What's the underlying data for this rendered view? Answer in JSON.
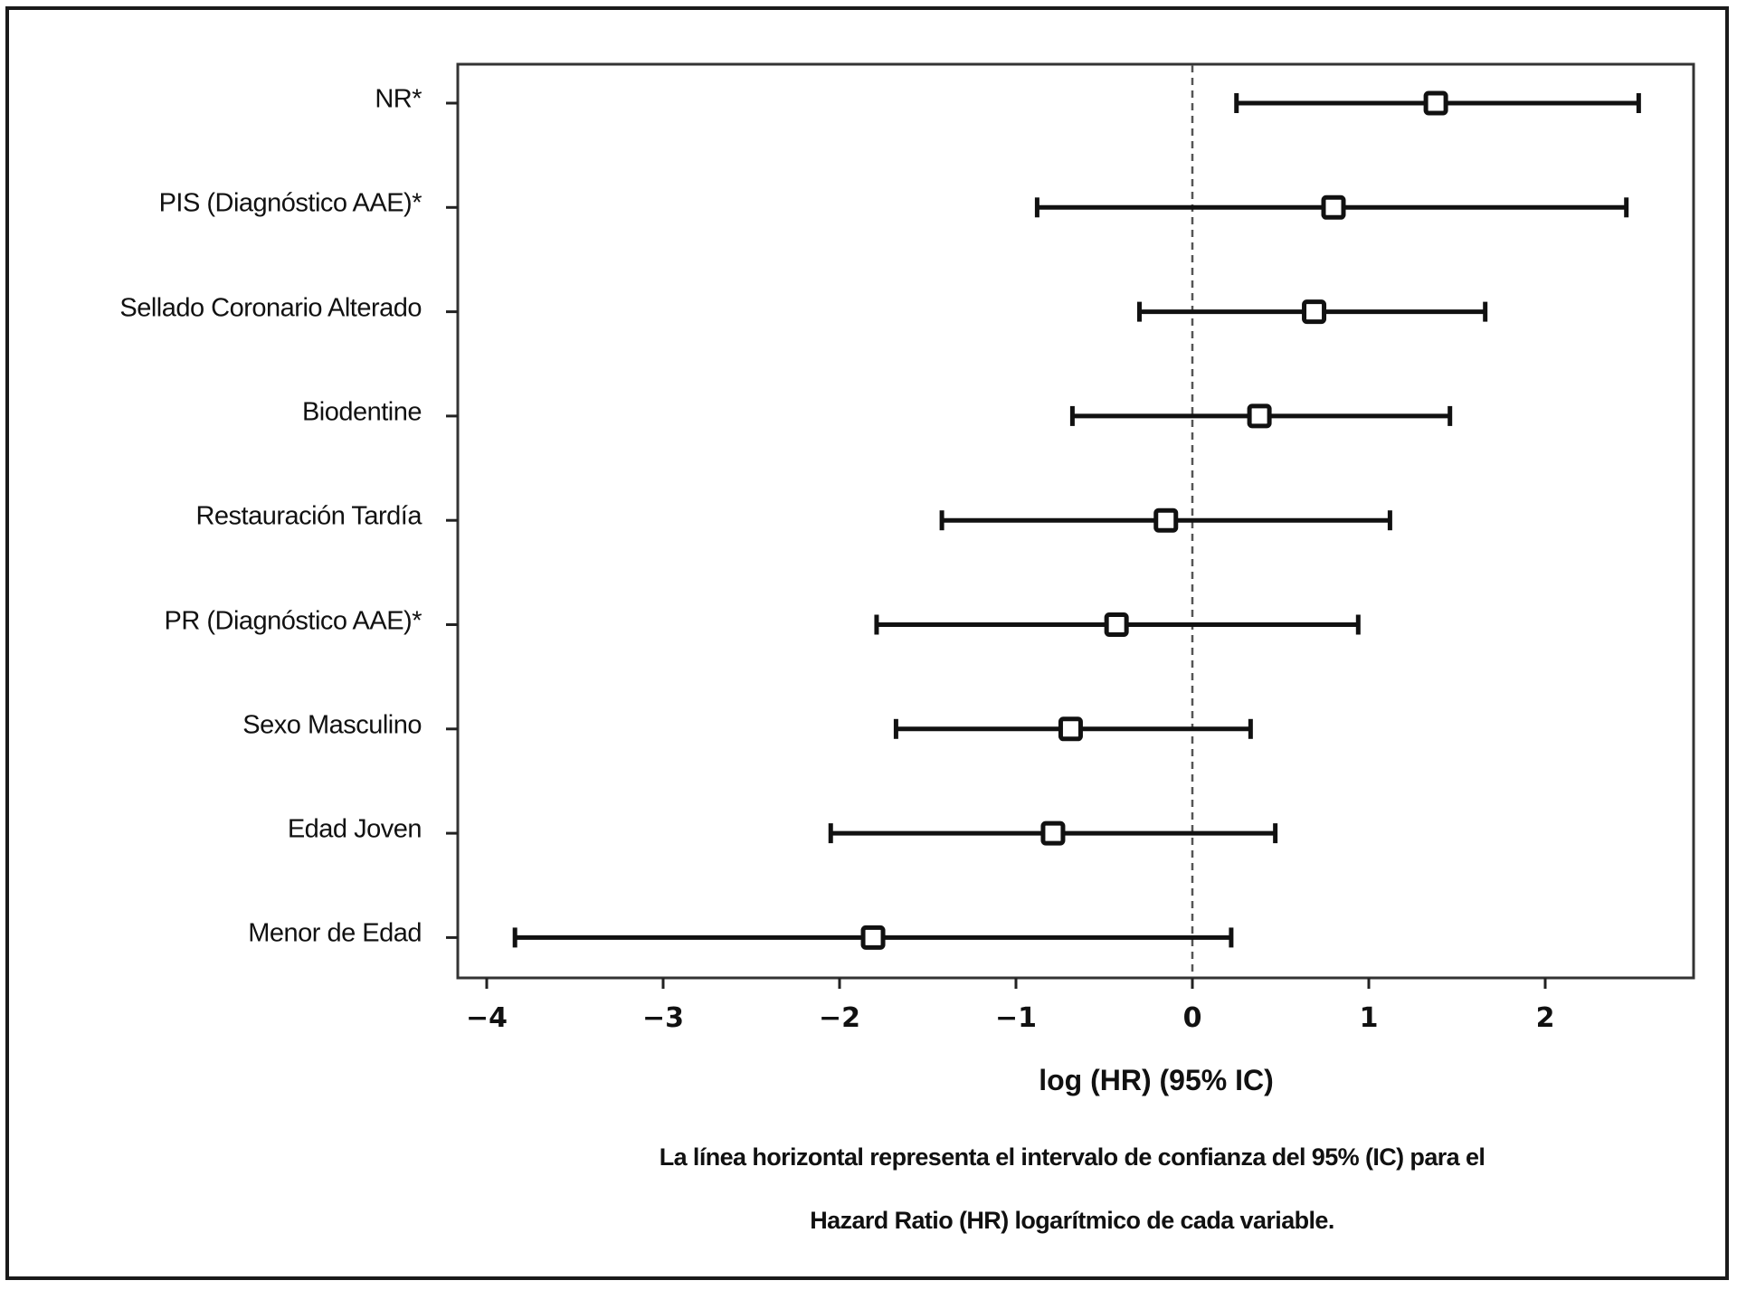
{
  "chart_data": {
    "type": "forest",
    "title": "",
    "xlabel": "log (HR) (95% IC)",
    "ylabel": "",
    "xlim": [
      -4.2,
      2.85
    ],
    "xticks": [
      -4,
      -3,
      -2,
      -1,
      0,
      1,
      2
    ],
    "xtick_labels": [
      "−4",
      "−3",
      "−2",
      "−1",
      "0",
      "1",
      "2"
    ],
    "reference_line": {
      "x": 0,
      "style": "dashed"
    },
    "grid": false,
    "legend": null,
    "categories": [
      "NR*",
      "PIS (Diagnóstico AAE)*",
      "Sellado Coronario Alterado",
      "Biodentine",
      "Restauración Tardía",
      "PR (Diagnóstico AAE)*",
      "Sexo Masculino",
      "Edad Joven",
      "Menor de Edad"
    ],
    "series": [
      {
        "name": "log(HR)",
        "values": [
          1.38,
          0.8,
          0.69,
          0.38,
          -0.15,
          -0.43,
          -0.69,
          -0.79,
          -1.81
        ],
        "ci_low": [
          0.25,
          -0.88,
          -0.3,
          -0.68,
          -1.42,
          -1.79,
          -1.68,
          -2.05,
          -3.84
        ],
        "ci_high": [
          2.53,
          2.46,
          1.66,
          1.46,
          1.12,
          0.94,
          0.33,
          0.47,
          0.22
        ]
      }
    ],
    "caption": [
      "La línea horizontal representa el intervalo de confianza del 95% (IC) para el",
      "Hazard Ratio (HR) logarítmico de cada variable."
    ]
  },
  "colors": {
    "ink": "#111111",
    "frame": "#1a1a1a",
    "reference": "#555555",
    "marker_fill": "#ffffff"
  }
}
